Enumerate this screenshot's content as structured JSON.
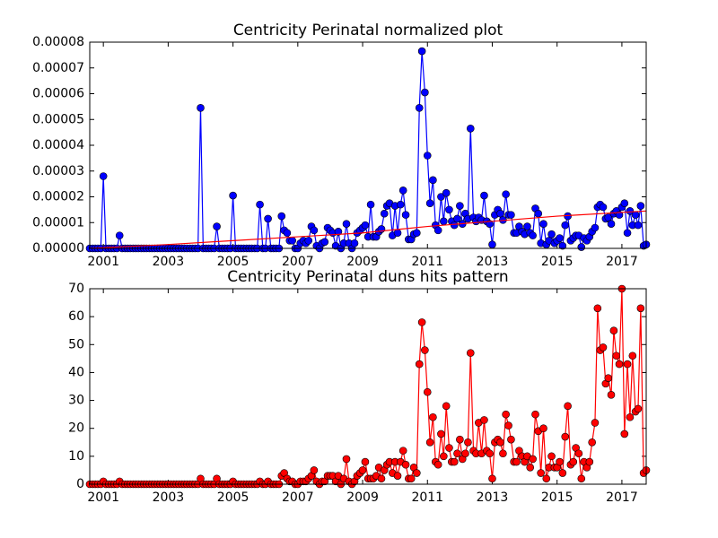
{
  "chart_data": [
    {
      "type": "line",
      "title": "Centricity Perinatal normalized plot",
      "x": [
        2000.58,
        2000.67,
        2000.75,
        2000.83,
        2000.92,
        2001,
        2001.08,
        2001.17,
        2001.25,
        2001.33,
        2001.42,
        2001.5,
        2001.58,
        2001.67,
        2001.75,
        2001.83,
        2001.92,
        2002,
        2002.08,
        2002.17,
        2002.25,
        2002.33,
        2002.42,
        2002.5,
        2002.58,
        2002.67,
        2002.75,
        2002.83,
        2002.92,
        2003,
        2003.08,
        2003.17,
        2003.25,
        2003.33,
        2003.42,
        2003.5,
        2003.58,
        2003.67,
        2003.75,
        2003.83,
        2003.92,
        2004,
        2004.08,
        2004.17,
        2004.25,
        2004.33,
        2004.42,
        2004.5,
        2004.58,
        2004.67,
        2004.75,
        2004.83,
        2004.92,
        2005,
        2005.08,
        2005.17,
        2005.25,
        2005.33,
        2005.42,
        2005.5,
        2005.58,
        2005.67,
        2005.75,
        2005.83,
        2005.92,
        2006,
        2006.08,
        2006.17,
        2006.25,
        2006.33,
        2006.42,
        2006.5,
        2006.58,
        2006.67,
        2006.75,
        2006.83,
        2006.92,
        2007,
        2007.08,
        2007.17,
        2007.25,
        2007.33,
        2007.42,
        2007.5,
        2007.58,
        2007.67,
        2007.75,
        2007.83,
        2007.92,
        2008,
        2008.08,
        2008.17,
        2008.25,
        2008.33,
        2008.42,
        2008.5,
        2008.58,
        2008.67,
        2008.75,
        2008.83,
        2008.92,
        2009,
        2009.08,
        2009.17,
        2009.25,
        2009.33,
        2009.42,
        2009.5,
        2009.58,
        2009.67,
        2009.75,
        2009.83,
        2009.92,
        2010,
        2010.08,
        2010.17,
        2010.25,
        2010.33,
        2010.42,
        2010.5,
        2010.58,
        2010.67,
        2010.75,
        2010.83,
        2010.92,
        2011,
        2011.08,
        2011.17,
        2011.25,
        2011.33,
        2011.42,
        2011.5,
        2011.58,
        2011.67,
        2011.75,
        2011.83,
        2011.92,
        2012,
        2012.08,
        2012.17,
        2012.25,
        2012.33,
        2012.42,
        2012.5,
        2012.58,
        2012.67,
        2012.75,
        2012.83,
        2012.92,
        2013,
        2013.08,
        2013.17,
        2013.25,
        2013.33,
        2013.42,
        2013.5,
        2013.58,
        2013.67,
        2013.75,
        2013.83,
        2013.92,
        2014,
        2014.08,
        2014.17,
        2014.25,
        2014.33,
        2014.42,
        2014.5,
        2014.58,
        2014.67,
        2014.75,
        2014.83,
        2014.92,
        2015,
        2015.08,
        2015.17,
        2015.25,
        2015.33,
        2015.42,
        2015.5,
        2015.58,
        2015.67,
        2015.75,
        2015.83,
        2015.92,
        2016,
        2016.08,
        2016.17,
        2016.25,
        2016.33,
        2016.42,
        2016.5,
        2016.58,
        2016.67,
        2016.75,
        2016.83,
        2016.92,
        2017,
        2017.08,
        2017.17,
        2017.25,
        2017.33,
        2017.42,
        2017.5,
        2017.58,
        2017.67,
        2017.75
      ],
      "series": [
        {
          "color": "#0000ff",
          "marker": true,
          "values": [
            0,
            0,
            0,
            0,
            0,
            2.8e-05,
            0,
            0,
            0,
            0,
            0,
            5e-06,
            0,
            0,
            0,
            0,
            0,
            0,
            0,
            0,
            0,
            0,
            0,
            0,
            0,
            0,
            0,
            0,
            0,
            0,
            0,
            0,
            0,
            0,
            0,
            0,
            0,
            0,
            0,
            0,
            0,
            5.45e-05,
            0,
            0,
            0,
            0,
            0,
            8.5e-06,
            0,
            0,
            0,
            0,
            0,
            2.05e-05,
            0,
            0,
            0,
            0,
            0,
            0,
            0,
            0,
            0,
            1.7e-05,
            0,
            0,
            1.15e-05,
            0,
            0,
            0,
            0,
            1.25e-05,
            7e-06,
            6e-06,
            3e-06,
            3e-06,
            0,
            0,
            2e-06,
            3e-06,
            2e-06,
            3e-06,
            8.5e-06,
            7e-06,
            1e-06,
            0,
            2e-06,
            2.5e-06,
            8e-06,
            7e-06,
            6e-06,
            1e-06,
            6.5e-06,
            0,
            2e-06,
            9.5e-06,
            2e-06,
            0,
            2e-06,
            6e-06,
            7e-06,
            8e-06,
            9e-06,
            4.5e-06,
            1.7e-05,
            4.5e-06,
            4.5e-06,
            6.5e-06,
            7.5e-06,
            1.35e-05,
            1.65e-05,
            1.75e-05,
            5e-06,
            1.65e-05,
            6e-06,
            1.7e-05,
            2.25e-05,
            1.3e-05,
            3.5e-06,
            3.5e-06,
            5.5e-06,
            6e-06,
            5.45e-05,
            7.65e-05,
            6.05e-05,
            3.6e-05,
            1.75e-05,
            2.65e-05,
            9e-06,
            7e-06,
            2e-05,
            1.05e-05,
            2.15e-05,
            1.5e-05,
            1.05e-05,
            9e-06,
            1.15e-05,
            1.65e-05,
            9.5e-06,
            1.35e-05,
            1.15e-05,
            4.65e-05,
            1.2e-05,
            1.05e-05,
            1.2e-05,
            1.1e-05,
            2.05e-05,
            1.05e-05,
            9.5e-06,
            1.5e-06,
            1.3e-05,
            1.5e-05,
            1.35e-05,
            1.1e-05,
            2.1e-05,
            1.3e-05,
            1.3e-05,
            6e-06,
            6e-06,
            8.5e-06,
            6.5e-06,
            5.5e-06,
            8.5e-06,
            6e-06,
            5e-06,
            1.55e-05,
            1.35e-05,
            2e-06,
            9.5e-06,
            1.5e-06,
            3e-06,
            5.5e-06,
            2e-06,
            3e-06,
            4e-06,
            1e-06,
            9e-06,
            1.25e-05,
            3e-06,
            4e-06,
            5e-06,
            5e-06,
            5e-07,
            4e-06,
            3e-06,
            4.5e-06,
            6.5e-06,
            8e-06,
            1.6e-05,
            1.7e-05,
            1.6e-05,
            1.15e-05,
            1.2e-05,
            9.5e-06,
            1.35e-05,
            1.45e-05,
            1.3e-05,
            1.6e-05,
            1.75e-05,
            6e-06,
            1.45e-05,
            9e-06,
            1.3e-05,
            9e-06,
            1.65e-05,
            1e-06,
            1.5e-06
          ]
        },
        {
          "color": "#ff0000",
          "marker": false,
          "x": [
            2000.58,
            2003,
            2005,
            2007,
            2009,
            2011,
            2013,
            2015,
            2017.75
          ],
          "values": [
            0,
            1.5e-06,
            3e-06,
            4.5e-06,
            6e-06,
            8.5e-06,
            1.05e-05,
            1.25e-05,
            1.45e-05
          ]
        }
      ],
      "xlim": [
        2000.58,
        2017.75
      ],
      "xticks": [
        2001,
        2003,
        2005,
        2007,
        2009,
        2011,
        2013,
        2015,
        2017
      ],
      "ylim": [
        0,
        8e-05
      ],
      "yticks": [
        {
          "value": 0,
          "label": "0.00000"
        },
        1e-05,
        2e-05,
        3e-05,
        4e-05,
        5e-05,
        6e-05,
        7e-05,
        8e-05
      ]
    },
    {
      "type": "line",
      "title": "Centricity Perinatal duns hits pattern",
      "x": [
        2000.58,
        2000.67,
        2000.75,
        2000.83,
        2000.92,
        2001,
        2001.08,
        2001.17,
        2001.25,
        2001.33,
        2001.42,
        2001.5,
        2001.58,
        2001.67,
        2001.75,
        2001.83,
        2001.92,
        2002,
        2002.08,
        2002.17,
        2002.25,
        2002.33,
        2002.42,
        2002.5,
        2002.58,
        2002.67,
        2002.75,
        2002.83,
        2002.92,
        2003,
        2003.08,
        2003.17,
        2003.25,
        2003.33,
        2003.42,
        2003.5,
        2003.58,
        2003.67,
        2003.75,
        2003.83,
        2003.92,
        2004,
        2004.08,
        2004.17,
        2004.25,
        2004.33,
        2004.42,
        2004.5,
        2004.58,
        2004.67,
        2004.75,
        2004.83,
        2004.92,
        2005,
        2005.08,
        2005.17,
        2005.25,
        2005.33,
        2005.42,
        2005.5,
        2005.58,
        2005.67,
        2005.75,
        2005.83,
        2005.92,
        2006,
        2006.08,
        2006.17,
        2006.25,
        2006.33,
        2006.42,
        2006.5,
        2006.58,
        2006.67,
        2006.75,
        2006.83,
        2006.92,
        2007,
        2007.08,
        2007.17,
        2007.25,
        2007.33,
        2007.42,
        2007.5,
        2007.58,
        2007.67,
        2007.75,
        2007.83,
        2007.92,
        2008,
        2008.08,
        2008.17,
        2008.25,
        2008.33,
        2008.42,
        2008.5,
        2008.58,
        2008.67,
        2008.75,
        2008.83,
        2008.92,
        2009,
        2009.08,
        2009.17,
        2009.25,
        2009.33,
        2009.42,
        2009.5,
        2009.58,
        2009.67,
        2009.75,
        2009.83,
        2009.92,
        2010,
        2010.08,
        2010.17,
        2010.25,
        2010.33,
        2010.42,
        2010.5,
        2010.58,
        2010.67,
        2010.75,
        2010.83,
        2010.92,
        2011,
        2011.08,
        2011.17,
        2011.25,
        2011.33,
        2011.42,
        2011.5,
        2011.58,
        2011.67,
        2011.75,
        2011.83,
        2011.92,
        2012,
        2012.08,
        2012.17,
        2012.25,
        2012.33,
        2012.42,
        2012.5,
        2012.58,
        2012.67,
        2012.75,
        2012.83,
        2012.92,
        2013,
        2013.08,
        2013.17,
        2013.25,
        2013.33,
        2013.42,
        2013.5,
        2013.58,
        2013.67,
        2013.75,
        2013.83,
        2013.92,
        2014,
        2014.08,
        2014.17,
        2014.25,
        2014.33,
        2014.42,
        2014.5,
        2014.58,
        2014.67,
        2014.75,
        2014.83,
        2014.92,
        2015,
        2015.08,
        2015.17,
        2015.25,
        2015.33,
        2015.42,
        2015.5,
        2015.58,
        2015.67,
        2015.75,
        2015.83,
        2015.92,
        2016,
        2016.08,
        2016.17,
        2016.25,
        2016.33,
        2016.42,
        2016.5,
        2016.58,
        2016.67,
        2016.75,
        2016.83,
        2016.92,
        2017,
        2017.08,
        2017.17,
        2017.25,
        2017.33,
        2017.42,
        2017.5,
        2017.58,
        2017.67,
        2017.75
      ],
      "series": [
        {
          "color": "#ff0000",
          "marker": true,
          "values": [
            0,
            0,
            0,
            0,
            0,
            1,
            0,
            0,
            0,
            0,
            0,
            1,
            0,
            0,
            0,
            0,
            0,
            0,
            0,
            0,
            0,
            0,
            0,
            0,
            0,
            0,
            0,
            0,
            0,
            0,
            0,
            0,
            0,
            0,
            0,
            0,
            0,
            0,
            0,
            0,
            0,
            2,
            0,
            0,
            0,
            0,
            0,
            2,
            0,
            0,
            0,
            0,
            0,
            1,
            0,
            0,
            0,
            0,
            0,
            0,
            0,
            0,
            0,
            1,
            0,
            0,
            1,
            0,
            0,
            0,
            0,
            3,
            4,
            2,
            1,
            1,
            0,
            0,
            1,
            1,
            1,
            2,
            3,
            5,
            1,
            0,
            1,
            1,
            3,
            3,
            3,
            1,
            3,
            0,
            2,
            9,
            1,
            0,
            1,
            3,
            4,
            5,
            8,
            2,
            2,
            2,
            3,
            6,
            2,
            5,
            7,
            8,
            4,
            8,
            3,
            8,
            12,
            7,
            2,
            2,
            6,
            4,
            43,
            58,
            48,
            33,
            15,
            24,
            8,
            7,
            18,
            10,
            28,
            13,
            8,
            8,
            11,
            16,
            9,
            11,
            15,
            47,
            12,
            11,
            22,
            11,
            23,
            12,
            11,
            2,
            15,
            16,
            15,
            11,
            25,
            21,
            16,
            8,
            8,
            12,
            10,
            8,
            10,
            6,
            9,
            25,
            19,
            4,
            20,
            2,
            6,
            10,
            6,
            6,
            8,
            4,
            17,
            28,
            7,
            8,
            13,
            11,
            2,
            8,
            6,
            8,
            15,
            22,
            63,
            48,
            49,
            36,
            38,
            32,
            55,
            46,
            43,
            70,
            18,
            43,
            24,
            46,
            26,
            27,
            63,
            4,
            5
          ]
        }
      ],
      "xlim": [
        2000.58,
        2017.75
      ],
      "xticks": [
        2001,
        2003,
        2005,
        2007,
        2009,
        2011,
        2013,
        2015,
        2017
      ],
      "ylim": [
        0,
        70
      ],
      "yticks": [
        0,
        10,
        20,
        30,
        40,
        50,
        60,
        70
      ]
    }
  ]
}
